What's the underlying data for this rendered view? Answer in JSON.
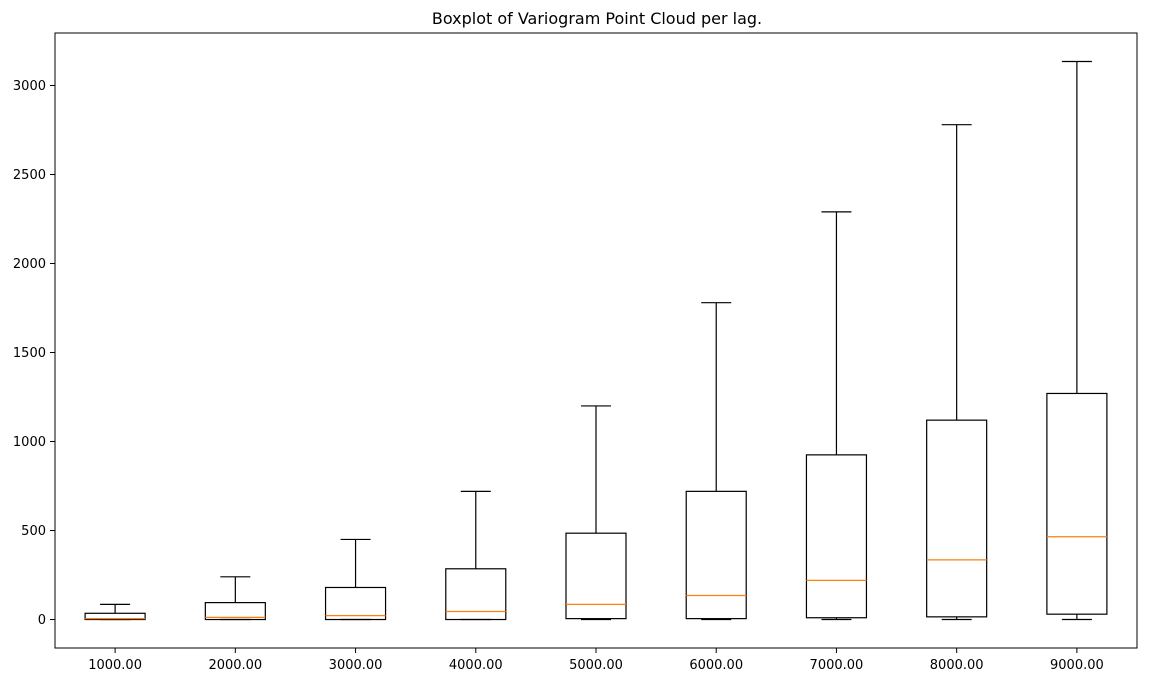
{
  "chart_data": {
    "type": "boxplot",
    "title": "Boxplot of Variogram Point Cloud per lag.",
    "xlabel": "",
    "ylabel": "",
    "categories": [
      "1000.00",
      "2000.00",
      "3000.00",
      "4000.00",
      "5000.00",
      "6000.00",
      "7000.00",
      "8000.00",
      "9000.00"
    ],
    "boxes": [
      {
        "whislo": 0,
        "q1": 0,
        "med": 5,
        "q3": 35,
        "whishi": 85
      },
      {
        "whislo": 0,
        "q1": 0,
        "med": 12,
        "q3": 95,
        "whishi": 240
      },
      {
        "whislo": 0,
        "q1": 0,
        "med": 22,
        "q3": 180,
        "whishi": 450
      },
      {
        "whislo": 0,
        "q1": 0,
        "med": 45,
        "q3": 285,
        "whishi": 720
      },
      {
        "whislo": 0,
        "q1": 5,
        "med": 85,
        "q3": 485,
        "whishi": 1200
      },
      {
        "whislo": 0,
        "q1": 5,
        "med": 135,
        "q3": 720,
        "whishi": 1780
      },
      {
        "whislo": 0,
        "q1": 10,
        "med": 220,
        "q3": 925,
        "whishi": 2290
      },
      {
        "whislo": 0,
        "q1": 15,
        "med": 335,
        "q3": 1120,
        "whishi": 2780
      },
      {
        "whislo": 0,
        "q1": 30,
        "med": 465,
        "q3": 1270,
        "whishi": 3135
      }
    ],
    "yticks": [
      0,
      500,
      1000,
      1500,
      2000,
      2500,
      3000
    ],
    "ylim": [
      -160,
      3295
    ],
    "grid": false,
    "colors": {
      "box": "#000000",
      "median": "#ff7f0e"
    }
  }
}
